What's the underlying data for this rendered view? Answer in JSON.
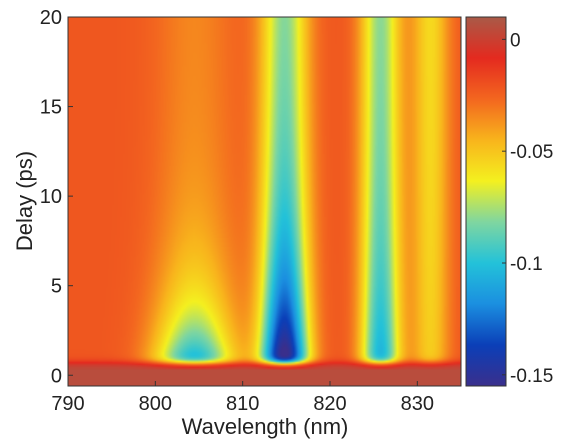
{
  "chart_data": {
    "type": "heatmap",
    "title": "",
    "xlabel": "Wavelength (nm)",
    "ylabel": "Delay (ps)",
    "xlim": [
      790,
      835
    ],
    "ylim": [
      -0.6,
      20
    ],
    "xticks": [
      790,
      800,
      810,
      820,
      830
    ],
    "yticks": [
      0,
      5,
      10,
      15,
      20
    ],
    "colorbar": {
      "range": [
        -0.155,
        0.01
      ],
      "ticks": [
        0,
        -0.05,
        -0.1,
        -0.15
      ],
      "tick_labels": [
        "0",
        "-0.05",
        "-0.1",
        "-0.15"
      ],
      "colormap": "jet",
      "colors_low_to_high": [
        "#3a2f8c",
        "#0b3fb8",
        "#1b8fe0",
        "#23c2d9",
        "#7fd6a0",
        "#f4f01f",
        "#f8b41c",
        "#f3661f",
        "#e42a1f",
        "#a95a48"
      ]
    },
    "signal": {
      "baseline": -0.022,
      "peaks": [
        {
          "center_nm": 804.5,
          "width_nm": 3.2,
          "early_amplitude": -0.09,
          "late_amplitude": -0.012,
          "decay_ps": 3.5
        },
        {
          "center_nm": 814.8,
          "width_nm": 1.9,
          "early_amplitude": -0.145,
          "late_amplitude": -0.055,
          "decay_ps": 6.0
        },
        {
          "center_nm": 825.8,
          "width_nm": 1.6,
          "early_amplitude": -0.085,
          "late_amplitude": -0.055,
          "decay_ps": 8.0
        },
        {
          "center_nm": 831.5,
          "width_nm": 1.5,
          "early_amplitude": -0.03,
          "late_amplitude": -0.035,
          "decay_ps": 10.0
        }
      ],
      "time_zero_ps": 0.7,
      "pre_time_zero_value": 0.005
    }
  }
}
